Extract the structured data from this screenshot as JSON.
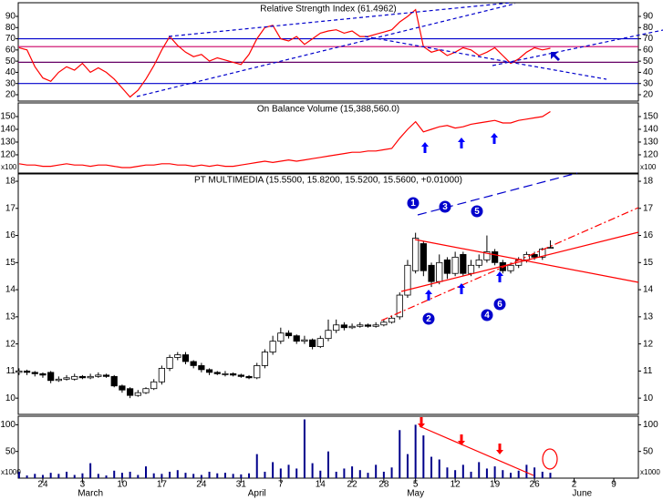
{
  "chart_data": {
    "type": "stock",
    "x": [
      0,
      1,
      2,
      3,
      4,
      5,
      6,
      7,
      8,
      9,
      10,
      11,
      12,
      13,
      14,
      15,
      16,
      17,
      18,
      19,
      20,
      21,
      22,
      23,
      24,
      25,
      26,
      27,
      28,
      29,
      30,
      31,
      32,
      33,
      34,
      35,
      36,
      37,
      38,
      39,
      40,
      41,
      42,
      43,
      44,
      45,
      46,
      47,
      48,
      49,
      50,
      51,
      52,
      53,
      54,
      55,
      56,
      57,
      58,
      59,
      60,
      61,
      62,
      63,
      64,
      65,
      66,
      67
    ],
    "xlim": [
      -0.1,
      78.1
    ],
    "xticks": [
      {
        "value": 3,
        "label": "24"
      },
      {
        "value": 8,
        "label": "3"
      },
      {
        "value": 13,
        "label": "10"
      },
      {
        "value": 18,
        "label": "17"
      },
      {
        "value": 23,
        "label": "24"
      },
      {
        "value": 28,
        "label": "31"
      },
      {
        "value": 33,
        "label": "7"
      },
      {
        "value": 38,
        "label": "14"
      },
      {
        "value": 42,
        "label": "22"
      },
      {
        "value": 46,
        "label": "28"
      },
      {
        "value": 50,
        "label": "5"
      },
      {
        "value": 55,
        "label": "12"
      },
      {
        "value": 60,
        "label": "19"
      },
      {
        "value": 65,
        "label": "26"
      },
      {
        "value": 70,
        "label": "2"
      },
      {
        "value": 75,
        "label": "9"
      }
    ],
    "month_labels": [
      {
        "value": 9,
        "label": "March"
      },
      {
        "value": 30,
        "label": "April"
      },
      {
        "value": 50,
        "label": "May"
      },
      {
        "value": 71,
        "label": "June"
      }
    ],
    "panels": [
      {
        "type": "line",
        "title": "Relative Strength Index (61.4962)",
        "color": "#ff0000",
        "ylim": [
          14.3,
          102.2
        ],
        "yticks": [
          20,
          30,
          40,
          50,
          60,
          70,
          80,
          90
        ],
        "ref_lines": [
          {
            "value": 70,
            "color": "#0000cc"
          },
          {
            "value": 63,
            "color": "#cc0066"
          },
          {
            "value": 49,
            "color": "#660066"
          },
          {
            "value": 30,
            "color": "#0000cc"
          }
        ],
        "values": [
          62,
          60,
          45,
          35,
          32,
          40,
          45,
          42,
          48,
          40,
          44,
          40,
          34,
          26,
          18,
          24,
          34,
          46,
          60,
          72,
          64,
          58,
          54,
          56,
          50,
          53,
          51,
          49,
          47,
          56,
          70,
          80,
          82,
          70,
          68,
          72,
          65,
          70,
          75,
          77,
          78,
          75,
          77,
          72,
          72,
          74,
          76,
          78,
          85,
          90,
          96,
          63,
          58,
          60,
          55,
          58,
          62,
          60,
          55,
          58,
          62,
          55,
          48,
          52,
          58,
          62,
          60,
          61.4962
        ]
      },
      {
        "type": "line",
        "title": "On Balance Volume (15,388,560.0)",
        "color": "#ff0000",
        "ylim": [
          105.7,
          160.7
        ],
        "yticks": [
          120,
          130,
          140,
          150
        ],
        "multiplier": "x100",
        "values": [
          113,
          112,
          112,
          111,
          111,
          112,
          113,
          112,
          112,
          111,
          112,
          112,
          111,
          110,
          110,
          111,
          112,
          112,
          113,
          113,
          112,
          112,
          111,
          112,
          111,
          112,
          111,
          111,
          112,
          113,
          114,
          115,
          114,
          115,
          116,
          115,
          116,
          117,
          118,
          119,
          120,
          121,
          122,
          122,
          123,
          123,
          124,
          125,
          133,
          140,
          146,
          138,
          140,
          142,
          143,
          141,
          142,
          144,
          145,
          146,
          147,
          145,
          145,
          147,
          148,
          149,
          150,
          153.9
        ]
      },
      {
        "type": "candlestick",
        "title": "PT MULTIMEDIA (15.5500, 15.8200, 15.5200, 15.5600, +0.01000)",
        "ylim": [
          9.4,
          18.27
        ],
        "yticks": [
          10,
          11,
          12,
          13,
          14,
          15,
          16,
          17,
          18
        ],
        "up_color": "#ffffff",
        "down_color": "#000000",
        "open": [
          10.95,
          11.0,
          10.95,
          10.9,
          10.95,
          10.65,
          10.7,
          10.7,
          10.8,
          10.75,
          10.8,
          10.85,
          10.8,
          10.45,
          10.35,
          10.1,
          10.2,
          10.35,
          10.6,
          11.1,
          11.5,
          11.6,
          11.35,
          11.2,
          11.05,
          10.95,
          10.9,
          10.9,
          10.85,
          10.8,
          10.75,
          11.2,
          11.7,
          12.1,
          12.4,
          12.3,
          12.1,
          12.15,
          11.9,
          12.2,
          12.5,
          12.7,
          12.6,
          12.65,
          12.7,
          12.65,
          12.7,
          12.8,
          13.0,
          13.8,
          14.7,
          15.7,
          14.9,
          14.3,
          15.1,
          14.6,
          15.3,
          14.6,
          14.9,
          15.1,
          15.4,
          15.0,
          14.7,
          14.9,
          15.1,
          15.3,
          15.2,
          15.55
        ],
        "high": [
          11.1,
          11.05,
          11.0,
          10.95,
          11.0,
          10.8,
          10.85,
          10.9,
          10.85,
          10.9,
          10.95,
          10.9,
          10.85,
          10.5,
          10.4,
          10.3,
          10.4,
          10.7,
          11.2,
          11.6,
          11.7,
          11.7,
          11.4,
          11.3,
          11.1,
          11.0,
          11.0,
          10.95,
          10.9,
          10.85,
          11.3,
          11.8,
          12.3,
          12.6,
          12.5,
          12.35,
          12.3,
          12.2,
          12.3,
          12.9,
          12.9,
          12.8,
          12.75,
          12.8,
          12.75,
          12.8,
          12.9,
          13.05,
          13.9,
          15.1,
          16.1,
          15.8,
          15.0,
          15.3,
          15.2,
          15.4,
          15.4,
          15.1,
          15.3,
          16.0,
          15.5,
          15.1,
          15.0,
          15.2,
          15.4,
          15.4,
          15.55,
          15.82
        ],
        "low": [
          10.85,
          10.85,
          10.8,
          10.75,
          10.55,
          10.6,
          10.65,
          10.65,
          10.7,
          10.7,
          10.75,
          10.75,
          10.4,
          10.2,
          10.0,
          10.05,
          10.15,
          10.3,
          10.5,
          11.0,
          11.4,
          11.25,
          11.1,
          10.95,
          10.85,
          10.85,
          10.8,
          10.8,
          10.75,
          10.7,
          10.7,
          11.1,
          11.6,
          12.0,
          12.2,
          12.0,
          12.0,
          11.8,
          11.85,
          12.1,
          12.4,
          12.5,
          12.55,
          12.6,
          12.6,
          12.6,
          12.65,
          12.75,
          12.9,
          13.7,
          14.6,
          14.5,
          14.1,
          14.2,
          14.4,
          14.5,
          14.5,
          14.5,
          14.8,
          15.0,
          14.9,
          14.6,
          14.6,
          14.8,
          15.0,
          15.1,
          15.1,
          15.52
        ],
        "close": [
          11.0,
          10.95,
          10.9,
          10.85,
          10.65,
          10.7,
          10.75,
          10.8,
          10.75,
          10.8,
          10.85,
          10.8,
          10.45,
          10.3,
          10.1,
          10.2,
          10.35,
          10.6,
          11.1,
          11.5,
          11.6,
          11.35,
          11.2,
          11.05,
          10.95,
          10.9,
          10.9,
          10.85,
          10.8,
          10.75,
          11.2,
          11.7,
          12.1,
          12.4,
          12.3,
          12.1,
          12.15,
          11.9,
          12.2,
          12.5,
          12.7,
          12.6,
          12.65,
          12.7,
          12.65,
          12.7,
          12.8,
          12.95,
          13.8,
          14.9,
          15.9,
          14.7,
          14.3,
          15.0,
          14.6,
          15.2,
          14.6,
          14.9,
          15.1,
          15.4,
          15.0,
          14.7,
          14.9,
          15.1,
          15.3,
          15.2,
          15.5,
          15.56
        ],
        "annotations": [
          "1",
          "2",
          "3",
          "4",
          "5",
          "6"
        ]
      },
      {
        "type": "bar",
        "color": "#00008b",
        "ylim": [
          0,
          116
        ],
        "yticks": [
          50,
          100
        ],
        "multiplier": "x1000",
        "values": [
          12,
          5,
          8,
          6,
          10,
          8,
          12,
          6,
          9,
          28,
          8,
          5,
          14,
          10,
          12,
          6,
          22,
          9,
          8,
          12,
          15,
          10,
          8,
          6,
          12,
          9,
          10,
          8,
          7,
          9,
          45,
          12,
          30,
          18,
          25,
          18,
          110,
          28,
          14,
          50,
          12,
          18,
          22,
          15,
          10,
          25,
          12,
          20,
          90,
          45,
          100,
          80,
          40,
          35,
          20,
          15,
          25,
          12,
          30,
          18,
          22,
          15,
          10,
          14,
          25,
          20,
          12,
          10
        ]
      }
    ]
  }
}
